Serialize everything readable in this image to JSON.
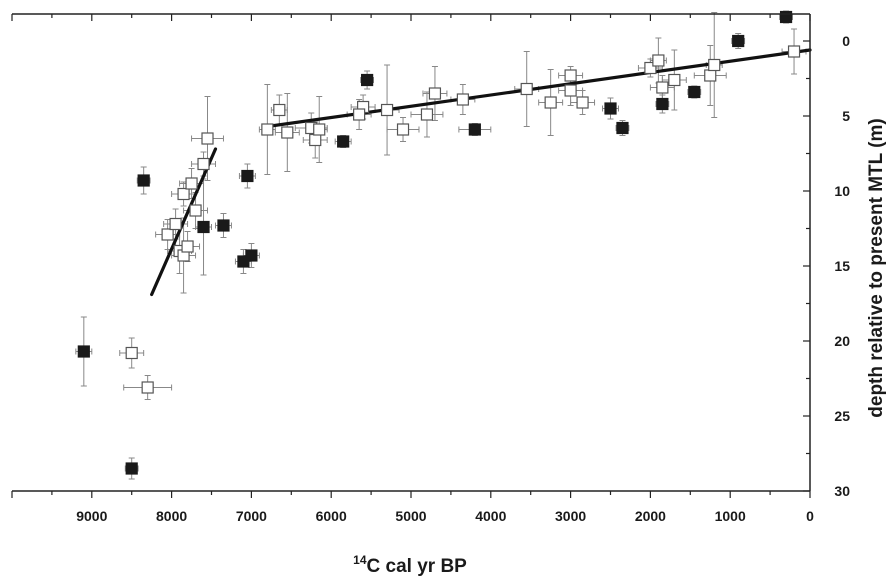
{
  "chart_data": {
    "type": "scatter",
    "title": "",
    "xlabel_sup": "14",
    "xlabel_main": "C cal yr BP",
    "ylabel": "depth relative to present MTL (m)",
    "xlim": [
      10000,
      0
    ],
    "ylim": [
      -1.8,
      30
    ],
    "x_ticks": [
      9000,
      8000,
      7000,
      6000,
      5000,
      4000,
      3000,
      2000,
      1000,
      0
    ],
    "y_ticks": [
      0,
      5,
      10,
      15,
      20,
      25,
      30
    ],
    "grid": false,
    "legend": "none",
    "colors": {
      "filled": "#1a1a1a",
      "open_fill": "#ffffff",
      "open_edge": "#555555",
      "error_bar": "#888888",
      "trend": "#111111"
    },
    "series": [
      {
        "marker": "open-square",
        "points": [
          {
            "x": 8500,
            "y": 20.8,
            "xerr": 150,
            "yerr": 1.0
          },
          {
            "x": 8300,
            "y": 23.1,
            "xerr": 300,
            "yerr": 0.8
          },
          {
            "x": 8050,
            "y": 12.9,
            "xerr": 150,
            "yerr": 1.0
          },
          {
            "x": 7950,
            "y": 12.2,
            "xerr": 150,
            "yerr": 1.0
          },
          {
            "x": 7900,
            "y": 14.0,
            "xerr": 150,
            "yerr": 1.5
          },
          {
            "x": 7850,
            "y": 10.2,
            "xerr": 150,
            "yerr": 0.8
          },
          {
            "x": 7850,
            "y": 14.3,
            "xerr": 150,
            "yerr": 2.5
          },
          {
            "x": 7800,
            "y": 13.7,
            "xerr": 150,
            "yerr": 1.0
          },
          {
            "x": 7750,
            "y": 9.5,
            "xerr": 150,
            "yerr": 1.0
          },
          {
            "x": 7700,
            "y": 11.3,
            "xerr": 150,
            "yerr": 1.2
          },
          {
            "x": 7600,
            "y": 8.2,
            "xerr": 150,
            "yerr": 0.8
          },
          {
            "x": 7550,
            "y": 6.5,
            "xerr": 200,
            "yerr": 2.8
          },
          {
            "x": 6800,
            "y": 5.9,
            "xerr": 100,
            "yerr": 3.0
          },
          {
            "x": 6650,
            "y": 4.6,
            "xerr": 100,
            "yerr": 1.0
          },
          {
            "x": 6550,
            "y": 6.1,
            "xerr": 150,
            "yerr": 2.6
          },
          {
            "x": 6250,
            "y": 5.8,
            "xerr": 200,
            "yerr": 1.0
          },
          {
            "x": 6200,
            "y": 6.6,
            "xerr": 150,
            "yerr": 1.2
          },
          {
            "x": 6150,
            "y": 5.9,
            "xerr": 100,
            "yerr": 2.2
          },
          {
            "x": 5600,
            "y": 4.4,
            "xerr": 150,
            "yerr": 0.8
          },
          {
            "x": 5650,
            "y": 4.9,
            "xerr": 150,
            "yerr": 1.0
          },
          {
            "x": 5300,
            "y": 4.6,
            "xerr": 150,
            "yerr": 3.0
          },
          {
            "x": 5100,
            "y": 5.9,
            "xerr": 200,
            "yerr": 0.8
          },
          {
            "x": 4800,
            "y": 4.9,
            "xerr": 200,
            "yerr": 1.5
          },
          {
            "x": 4700,
            "y": 3.5,
            "xerr": 150,
            "yerr": 1.8
          },
          {
            "x": 4350,
            "y": 3.9,
            "xerr": 150,
            "yerr": 1.0
          },
          {
            "x": 3550,
            "y": 3.2,
            "xerr": 150,
            "yerr": 2.5
          },
          {
            "x": 3250,
            "y": 4.1,
            "xerr": 150,
            "yerr": 2.2
          },
          {
            "x": 3000,
            "y": 3.3,
            "xerr": 150,
            "yerr": 1.0
          },
          {
            "x": 3000,
            "y": 2.3,
            "xerr": 150,
            "yerr": 0.6
          },
          {
            "x": 2850,
            "y": 4.1,
            "xerr": 150,
            "yerr": 0.8
          },
          {
            "x": 2000,
            "y": 1.8,
            "xerr": 150,
            "yerr": 0.6
          },
          {
            "x": 1900,
            "y": 1.3,
            "xerr": 100,
            "yerr": 1.5
          },
          {
            "x": 1850,
            "y": 3.1,
            "xerr": 150,
            "yerr": 0.8
          },
          {
            "x": 1700,
            "y": 2.6,
            "xerr": 150,
            "yerr": 2.0
          },
          {
            "x": 1250,
            "y": 2.3,
            "xerr": 200,
            "yerr": 2.0
          },
          {
            "x": 1200,
            "y": 1.6,
            "xerr": 100,
            "yerr": 3.5
          },
          {
            "x": 200,
            "y": 0.7,
            "xerr": 150,
            "yerr": 1.5
          }
        ]
      },
      {
        "marker": "filled-square",
        "points": [
          {
            "x": 9100,
            "y": 20.7,
            "xerr": 100,
            "yerr": 2.3
          },
          {
            "x": 8500,
            "y": 28.5,
            "xerr": 80,
            "yerr": 0.7
          },
          {
            "x": 8350,
            "y": 9.3,
            "xerr": 80,
            "yerr": 0.9
          },
          {
            "x": 7600,
            "y": 12.4,
            "xerr": 100,
            "yerr": 3.2
          },
          {
            "x": 7350,
            "y": 12.3,
            "xerr": 100,
            "yerr": 0.8
          },
          {
            "x": 7100,
            "y": 14.7,
            "xerr": 100,
            "yerr": 0.8
          },
          {
            "x": 7050,
            "y": 9.0,
            "xerr": 100,
            "yerr": 0.8
          },
          {
            "x": 7000,
            "y": 14.3,
            "xerr": 100,
            "yerr": 0.8
          },
          {
            "x": 5850,
            "y": 6.7,
            "xerr": 100,
            "yerr": 0.4
          },
          {
            "x": 5550,
            "y": 2.6,
            "xerr": 80,
            "yerr": 0.6
          },
          {
            "x": 4200,
            "y": 5.9,
            "xerr": 200,
            "yerr": 0.4
          },
          {
            "x": 2500,
            "y": 4.5,
            "xerr": 100,
            "yerr": 0.7
          },
          {
            "x": 2350,
            "y": 5.8,
            "xerr": 80,
            "yerr": 0.5
          },
          {
            "x": 1850,
            "y": 4.2,
            "xerr": 80,
            "yerr": 0.6
          },
          {
            "x": 1450,
            "y": 3.4,
            "xerr": 80,
            "yerr": 0.4
          },
          {
            "x": 900,
            "y": 0.0,
            "xerr": 80,
            "yerr": 0.5
          },
          {
            "x": 300,
            "y": -1.6,
            "xerr": 80,
            "yerr": 0.4
          }
        ]
      }
    ],
    "trend_lines": [
      {
        "from": [
          8250,
          16.9
        ],
        "to": [
          7450,
          7.2
        ]
      },
      {
        "from": [
          6800,
          5.7
        ],
        "to": [
          0,
          0.6
        ]
      }
    ]
  }
}
